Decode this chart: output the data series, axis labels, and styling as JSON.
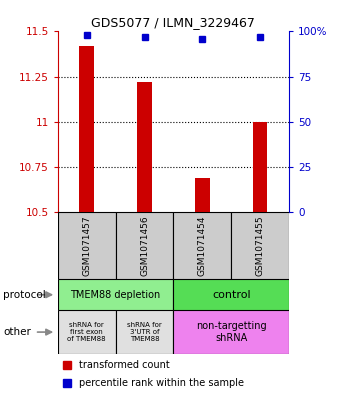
{
  "title": "GDS5077 / ILMN_3229467",
  "samples": [
    "GSM1071457",
    "GSM1071456",
    "GSM1071454",
    "GSM1071455"
  ],
  "red_values": [
    11.42,
    11.22,
    10.69,
    11.0
  ],
  "blue_values": [
    98,
    97,
    96,
    97
  ],
  "ylim": [
    10.5,
    11.5
  ],
  "yticks": [
    10.5,
    10.75,
    11.0,
    11.25,
    11.5
  ],
  "ytick_labels": [
    "10.5",
    "10.75",
    "11",
    "11.25",
    "11.5"
  ],
  "y2ticks": [
    0,
    25,
    50,
    75,
    100
  ],
  "y2tick_labels": [
    "0",
    "25",
    "50",
    "75",
    "100%"
  ],
  "bar_bottom": 10.5,
  "protocol_labels": [
    "TMEM88 depletion",
    "control"
  ],
  "other_labels": [
    "shRNA for\nfirst exon\nof TMEM88",
    "shRNA for\n3'UTR of\nTMEM88",
    "non-targetting\nshRNA"
  ],
  "protocol_color_left": "#90ee90",
  "protocol_color_right": "#55dd55",
  "other_color_gray": "#e0e0e0",
  "other_color_pink": "#ee82ee",
  "legend_red": "transformed count",
  "legend_blue": "percentile rank within the sample",
  "sample_box_color": "#cccccc",
  "red_color": "#cc0000",
  "blue_color": "#0000cc",
  "arrow_color": "#888888"
}
